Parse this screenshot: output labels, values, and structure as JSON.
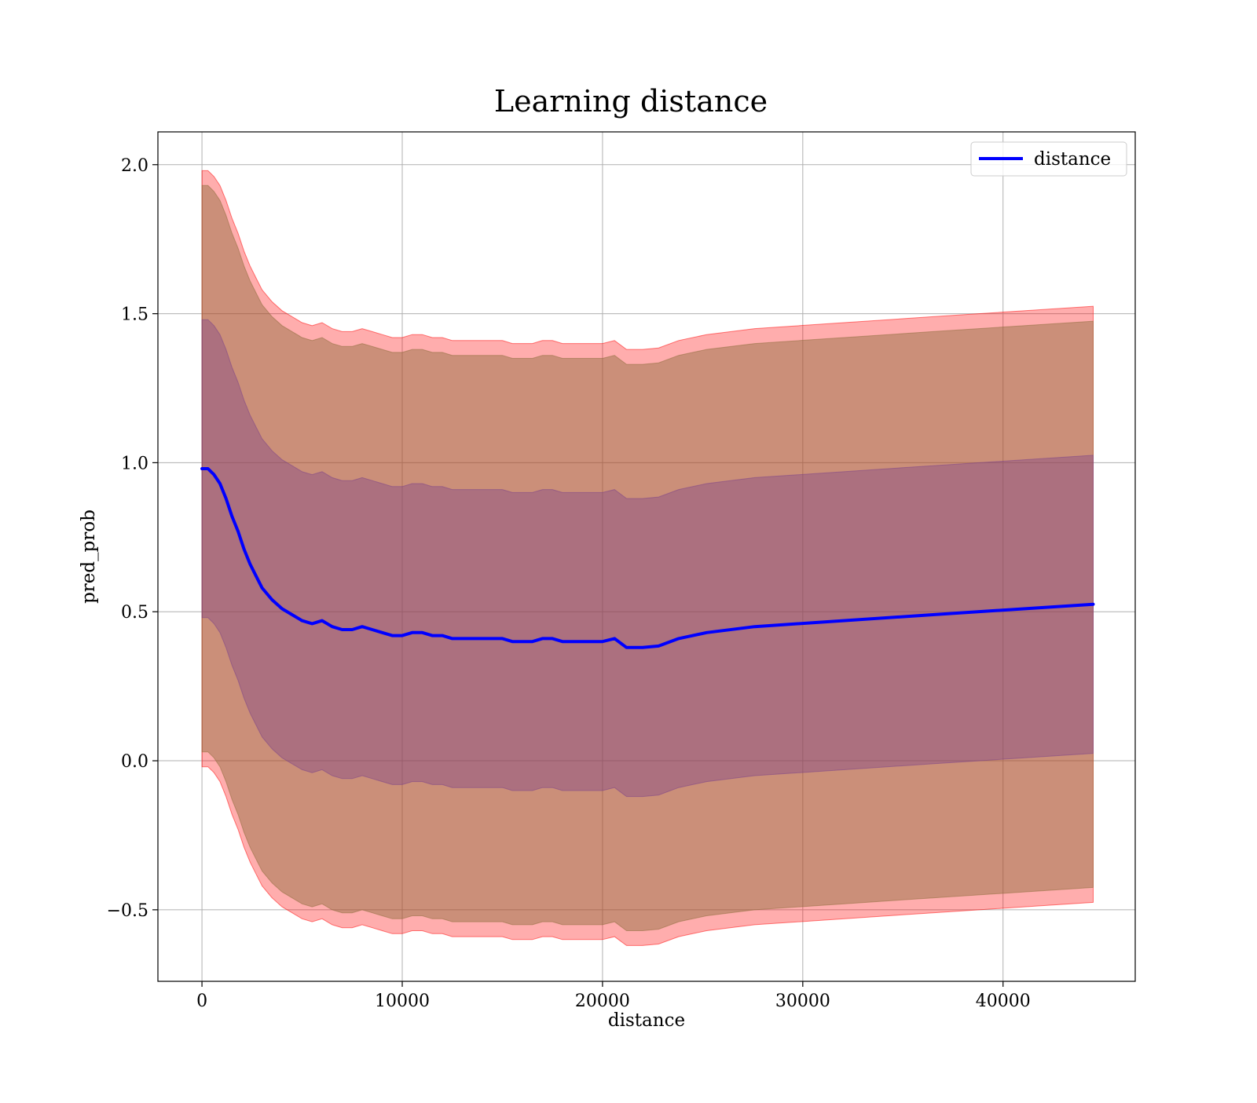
{
  "chart_data": {
    "type": "line",
    "title": "Learning distance",
    "xlabel": "distance",
    "ylabel": "pred_prob",
    "xlim": [
      -2200,
      46600
    ],
    "ylim": [
      -0.74,
      2.11
    ],
    "xticks": [
      0,
      10000,
      20000,
      30000,
      40000
    ],
    "xtick_labels": [
      "0",
      "10000",
      "20000",
      "30000",
      "40000"
    ],
    "yticks": [
      -0.5,
      0.0,
      0.5,
      1.0,
      1.5,
      2.0
    ],
    "ytick_labels": [
      "−0.5",
      "0.0",
      "0.5",
      "1.0",
      "1.5",
      "2.0"
    ],
    "grid": true,
    "legend": {
      "position": "top-right",
      "entries": [
        "distance"
      ]
    },
    "colors": {
      "line": "#0000ff",
      "outer_band": "#ff0000",
      "mid_band": "#8b6b3a",
      "inner_band": "#7a3f8a",
      "grid": "#b0b0b0"
    },
    "x": [
      0,
      300,
      600,
      900,
      1200,
      1500,
      1800,
      2100,
      2400,
      2700,
      3000,
      3500,
      4000,
      4500,
      5000,
      5500,
      6000,
      6500,
      7000,
      7500,
      8000,
      8500,
      9000,
      9500,
      10000,
      10500,
      11000,
      11500,
      12000,
      12500,
      13000,
      13500,
      14000,
      14500,
      15000,
      15500,
      16000,
      16500,
      17000,
      17500,
      18000,
      18500,
      19000,
      19500,
      20000,
      20600,
      21200,
      22000,
      22800,
      23800,
      25200,
      27600,
      36500,
      44500
    ],
    "series": [
      {
        "name": "distance",
        "values": [
          0.98,
          0.98,
          0.96,
          0.93,
          0.88,
          0.82,
          0.77,
          0.71,
          0.66,
          0.62,
          0.58,
          0.54,
          0.51,
          0.49,
          0.47,
          0.46,
          0.47,
          0.45,
          0.44,
          0.44,
          0.45,
          0.44,
          0.43,
          0.42,
          0.42,
          0.43,
          0.43,
          0.42,
          0.42,
          0.41,
          0.41,
          0.41,
          0.41,
          0.41,
          0.41,
          0.4,
          0.4,
          0.4,
          0.41,
          0.41,
          0.4,
          0.4,
          0.4,
          0.4,
          0.4,
          0.41,
          0.38,
          0.38,
          0.385,
          0.41,
          0.43,
          0.45,
          0.49,
          0.525
        ]
      }
    ],
    "bands": [
      {
        "role": "outer",
        "half_width": 1.0
      },
      {
        "role": "mid",
        "half_width": 0.95
      },
      {
        "role": "inner",
        "half_width": 0.5
      }
    ]
  }
}
